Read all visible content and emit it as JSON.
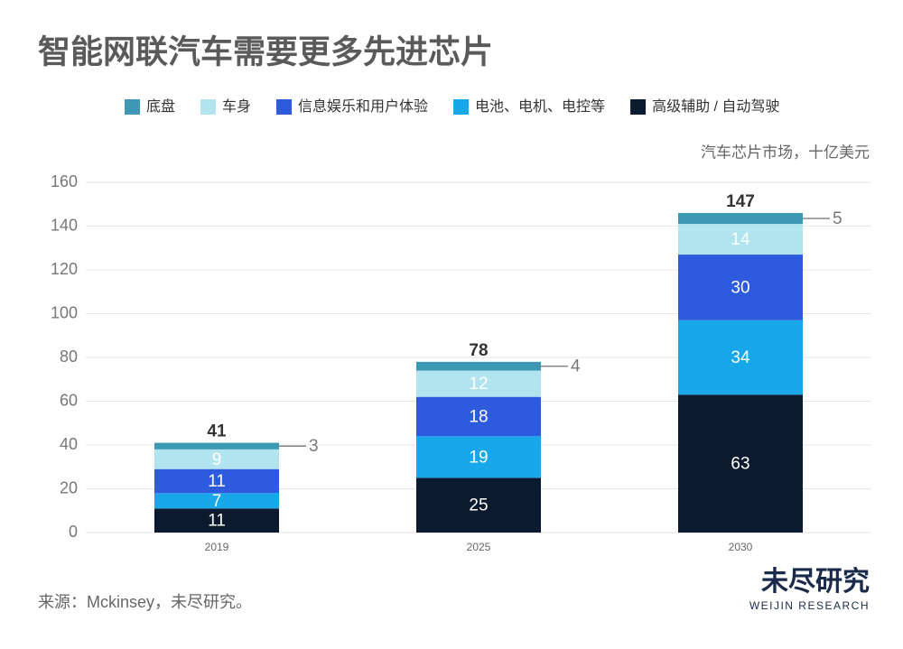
{
  "chart_data": {
    "type": "stacked_bar",
    "title": "智能网联汽车需要更多先进芯片",
    "y_axis_label": "汽车芯片市场，十亿美元",
    "categories": [
      "2019",
      "2025",
      "2030"
    ],
    "series": [
      {
        "name": "底盘",
        "color": "#3d98b3",
        "values": [
          3,
          4,
          5
        ]
      },
      {
        "name": "车身",
        "color": "#b2e4f0",
        "values": [
          9,
          12,
          14
        ]
      },
      {
        "name": "信息娱乐和用户体验",
        "color": "#2e5ade",
        "values": [
          11,
          18,
          30
        ]
      },
      {
        "name": "电池、电机、电控等",
        "color": "#18a8ea",
        "values": [
          7,
          19,
          34
        ]
      },
      {
        "name": "高级辅助 / 自动驾驶",
        "color": "#0b1a2e",
        "values": [
          11,
          25,
          63
        ]
      }
    ],
    "totals": [
      41,
      78,
      147
    ],
    "ylim": [
      0,
      160
    ],
    "yticks": [
      0,
      20,
      40,
      60,
      80,
      100,
      120,
      140,
      160
    ],
    "grid": true,
    "source": "来源：Mckinsey，未尽研究。",
    "logo": {
      "name": "未尽研究",
      "subtitle": "WEIJIN RESEARCH"
    }
  }
}
